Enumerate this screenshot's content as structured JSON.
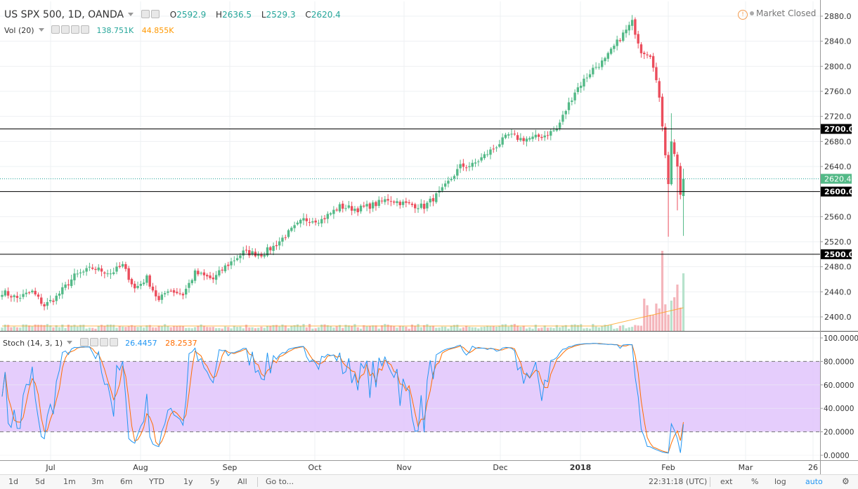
{
  "header": {
    "symbol": "US SPX 500, 1D, OANDA",
    "open_label": "O",
    "open": "2592.9",
    "high_label": "H",
    "high": "2636.5",
    "low_label": "L",
    "low": "2529.3",
    "close_label": "C",
    "close": "2620.4",
    "vol_label": "Vol (20)",
    "vol_value_1": "138.751K",
    "vol_value_2": "44.855K",
    "stoch_label": "Stoch (14, 3, 1)",
    "stoch_k": "26.4457",
    "stoch_d": "28.2537",
    "market_status": "Market Closed"
  },
  "colors": {
    "up": "#53b987",
    "down": "#eb4d5c",
    "k_line": "#2196f3",
    "d_line": "#ff6d00",
    "band": "#e1c4fb",
    "vol_up": "#b7e2cc",
    "vol_down": "#f4b5bb"
  },
  "chart_data": {
    "type": "candlestick",
    "price_axis": {
      "min": 2370,
      "max": 2895,
      "ticks": [
        "2880.0",
        "2840.0",
        "2800.0",
        "2760.0",
        "2720.0",
        "2680.0",
        "2640.0",
        "2600.0",
        "2560.0",
        "2520.0",
        "2480.0",
        "2440.0",
        "2400.0"
      ],
      "tick_values": [
        2880,
        2840,
        2800,
        2760,
        2720,
        2680,
        2640,
        2600,
        2560,
        2520,
        2480,
        2440,
        2400
      ]
    },
    "horizontal_levels": [
      {
        "value": 2700,
        "label": "2700.0"
      },
      {
        "value": 2600,
        "label": "2600.0"
      },
      {
        "value": 2500,
        "label": "2500.0"
      }
    ],
    "last_price": {
      "value": 2620.4,
      "label": "2620.4"
    },
    "time_axis": [
      "Jul",
      "Aug",
      "Sep",
      "Oct",
      "Nov",
      "Dec",
      "2018",
      "Feb",
      "Mar",
      "26"
    ],
    "waypoints_close": [
      [
        0,
        2440
      ],
      [
        5,
        2430
      ],
      [
        10,
        2440
      ],
      [
        14,
        2418
      ],
      [
        18,
        2432
      ],
      [
        24,
        2465
      ],
      [
        30,
        2478
      ],
      [
        36,
        2470
      ],
      [
        40,
        2482
      ],
      [
        44,
        2445
      ],
      [
        48,
        2462
      ],
      [
        52,
        2425
      ],
      [
        55,
        2444
      ],
      [
        60,
        2436
      ],
      [
        64,
        2470
      ],
      [
        70,
        2460
      ],
      [
        74,
        2480
      ],
      [
        80,
        2503
      ],
      [
        86,
        2500
      ],
      [
        90,
        2512
      ],
      [
        94,
        2530
      ],
      [
        100,
        2555
      ],
      [
        106,
        2555
      ],
      [
        112,
        2576
      ],
      [
        118,
        2572
      ],
      [
        124,
        2580
      ],
      [
        128,
        2588
      ],
      [
        134,
        2580
      ],
      [
        140,
        2576
      ],
      [
        146,
        2602
      ],
      [
        152,
        2640
      ],
      [
        156,
        2642
      ],
      [
        162,
        2665
      ],
      [
        168,
        2690
      ],
      [
        172,
        2684
      ],
      [
        176,
        2685
      ],
      [
        180,
        2690
      ],
      [
        184,
        2700
      ],
      [
        190,
        2760
      ],
      [
        196,
        2796
      ],
      [
        200,
        2810
      ],
      [
        205,
        2845
      ],
      [
        209,
        2870
      ],
      [
        212,
        2825
      ],
      [
        215,
        2820
      ],
      [
        218,
        2750
      ],
      [
        221,
        2612
      ],
      [
        222,
        2680
      ],
      [
        224,
        2640
      ],
      [
        225,
        2595
      ],
      [
        226,
        2620
      ]
    ],
    "stochastic": {
      "range": [
        0,
        100
      ],
      "ticks": [
        "100.0000",
        "80.0000",
        "60.0000",
        "40.0000",
        "20.0000",
        "0.0000"
      ],
      "tick_values": [
        100,
        80,
        60,
        40,
        20,
        0
      ],
      "overbought": 80,
      "oversold": 20
    }
  },
  "toolbar": {
    "items": [
      "1d",
      "5d",
      "1m",
      "3m",
      "6m",
      "YTD",
      "1y",
      "5y",
      "All",
      "Go to..."
    ],
    "time": "22:31:18 (UTC)",
    "right_items": [
      "ext",
      "%",
      "log",
      "auto"
    ]
  }
}
